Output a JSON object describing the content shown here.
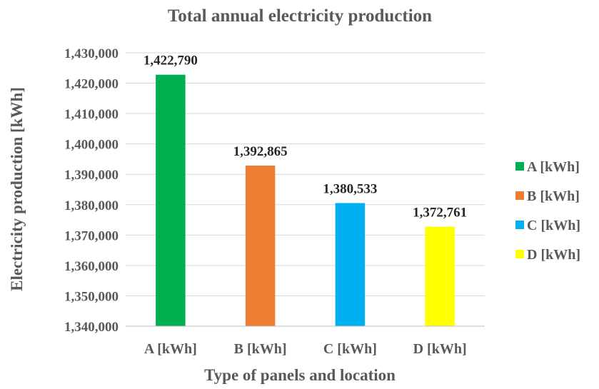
{
  "chart_data": {
    "type": "bar",
    "title": "Total annual electricity production",
    "xlabel": "Type of panels and location",
    "ylabel": "Electricity production [kWh]",
    "categories": [
      "A [kWh]",
      "B [kWh]",
      "C [kWh]",
      "D [kWh]"
    ],
    "values": [
      1422790,
      1392865,
      1380533,
      1372761
    ],
    "data_labels": [
      "1,422,790",
      "1,392,865",
      "1,380,533",
      "1,372,761"
    ],
    "colors": [
      "#00b050",
      "#ed7d31",
      "#00b0f0",
      "#ffff00"
    ],
    "ylim": [
      1340000,
      1430000
    ],
    "yticks": [
      1340000,
      1350000,
      1360000,
      1370000,
      1380000,
      1390000,
      1400000,
      1410000,
      1420000,
      1430000
    ],
    "ytick_labels": [
      "1,340,000",
      "1,350,000",
      "1,360,000",
      "1,370,000",
      "1,380,000",
      "1,390,000",
      "1,400,000",
      "1,410,000",
      "1,420,000",
      "1,430,000"
    ],
    "grid": true,
    "legend": {
      "position": "right",
      "entries": [
        "A [kWh]",
        "B [kWh]",
        "C [kWh]",
        "D [kWh]"
      ]
    }
  }
}
